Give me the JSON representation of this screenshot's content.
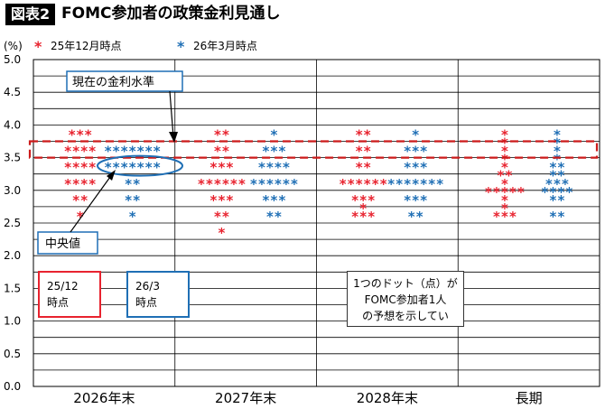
{
  "figure": {
    "badge": "図表2",
    "title": "FOMC参加者の政策金利見通し"
  },
  "colors": {
    "dec": "#e8232f",
    "mar": "#1f6fb5",
    "band": "#cc1a1a",
    "grid": "#000000"
  },
  "annotations": {
    "current_rate": "現在の金利水準",
    "median": "中央値",
    "box_dec": [
      "25/12",
      "時点"
    ],
    "box_mar": [
      "26/3",
      "時点"
    ],
    "note": [
      "1つのドット（点）が",
      "FOMC参加者1人",
      "の予想を示してい"
    ]
  },
  "chart_data": {
    "type": "scatter",
    "ylabel": "(%)",
    "ylim": [
      0,
      5
    ],
    "ytick_step": 0.25,
    "ytick_labels": [
      "0.0",
      "0.5",
      "1.0",
      "1.5",
      "2.0",
      "2.5",
      "3.0",
      "3.5",
      "4.0",
      "4.5",
      "5.0"
    ],
    "grid": true,
    "categories": [
      "2026年末",
      "2027年末",
      "2028年末",
      "長期"
    ],
    "current_rate_band": [
      3.5,
      3.75
    ],
    "legend_position": "top-left",
    "series": [
      {
        "name": "25年12月時点",
        "color_key": "dec",
        "dots": [
          [
            [
              3.875,
              3
            ],
            [
              3.625,
              4
            ],
            [
              3.375,
              4
            ],
            [
              3.125,
              4
            ],
            [
              2.875,
              2
            ],
            [
              2.625,
              1
            ]
          ],
          [
            [
              3.875,
              2
            ],
            [
              3.625,
              2
            ],
            [
              3.375,
              3
            ],
            [
              3.125,
              6
            ],
            [
              2.875,
              3
            ],
            [
              2.625,
              2
            ],
            [
              2.375,
              1
            ]
          ],
          [
            [
              3.875,
              2
            ],
            [
              3.625,
              2
            ],
            [
              3.375,
              2
            ],
            [
              3.125,
              6
            ],
            [
              2.875,
              3
            ],
            [
              2.75,
              1
            ],
            [
              2.625,
              3
            ]
          ],
          [
            [
              3.875,
              1
            ],
            [
              3.75,
              1
            ],
            [
              3.625,
              1
            ],
            [
              3.5,
              1
            ],
            [
              3.375,
              1
            ],
            [
              3.25,
              2
            ],
            [
              3.125,
              1
            ],
            [
              3.0,
              5
            ],
            [
              2.875,
              1
            ],
            [
              2.75,
              1
            ],
            [
              2.625,
              3
            ]
          ]
        ]
      },
      {
        "name": "26年3月時点",
        "color_key": "mar",
        "dots": [
          [
            [
              3.625,
              7
            ],
            [
              3.375,
              7
            ],
            [
              3.125,
              2
            ],
            [
              2.875,
              2
            ],
            [
              2.625,
              1
            ]
          ],
          [
            [
              3.875,
              1
            ],
            [
              3.625,
              3
            ],
            [
              3.375,
              4
            ],
            [
              3.125,
              6
            ],
            [
              2.875,
              3
            ],
            [
              2.625,
              2
            ]
          ],
          [
            [
              3.875,
              1
            ],
            [
              3.625,
              3
            ],
            [
              3.375,
              3
            ],
            [
              3.125,
              7
            ],
            [
              2.875,
              3
            ],
            [
              2.625,
              2
            ]
          ],
          [
            [
              3.875,
              1
            ],
            [
              3.75,
              1
            ],
            [
              3.625,
              1
            ],
            [
              3.5,
              1
            ],
            [
              3.375,
              2
            ],
            [
              3.25,
              2
            ],
            [
              3.125,
              3
            ],
            [
              3.0,
              4
            ],
            [
              2.875,
              2
            ],
            [
              2.625,
              2
            ]
          ]
        ]
      }
    ]
  }
}
